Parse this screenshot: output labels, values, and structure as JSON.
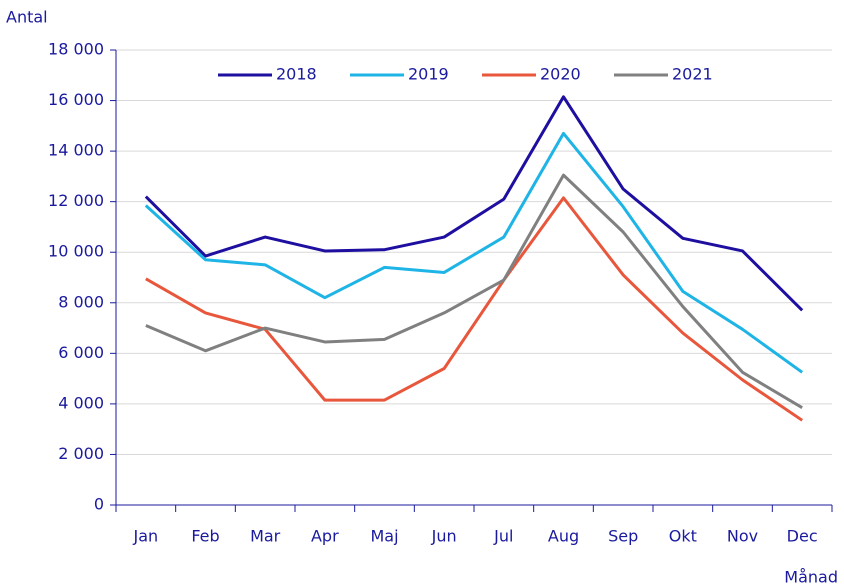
{
  "chart_data": {
    "type": "line",
    "y_label": "Antal",
    "x_label": "Månad",
    "categories": [
      "Jan",
      "Feb",
      "Mar",
      "Apr",
      "Maj",
      "Jun",
      "Jul",
      "Aug",
      "Sep",
      "Okt",
      "Nov",
      "Dec"
    ],
    "series": [
      {
        "name": "2018",
        "color": "#1e0fa0",
        "values": [
          12200,
          9850,
          10600,
          10050,
          10100,
          10600,
          12100,
          16150,
          12500,
          10550,
          10050,
          7700
        ]
      },
      {
        "name": "2019",
        "color": "#1eb4e6",
        "values": [
          11850,
          9700,
          9500,
          8200,
          9400,
          9200,
          10600,
          14700,
          11800,
          8450,
          6950,
          5250
        ]
      },
      {
        "name": "2020",
        "color": "#e8573c",
        "values": [
          8950,
          7600,
          6950,
          4150,
          4150,
          5400,
          8900,
          12150,
          9100,
          6800,
          4950,
          3350
        ]
      },
      {
        "name": "2021",
        "color": "#808080",
        "values": [
          7100,
          6100,
          7000,
          6450,
          6550,
          7600,
          8900,
          13050,
          10800,
          7850,
          5250,
          3850
        ]
      }
    ],
    "ylim": [
      0,
      18000
    ],
    "yticks": [
      0,
      {
        "value": 2000,
        "label": "2 000"
      },
      {
        "value": 4000,
        "label": "4 000"
      },
      {
        "value": 6000,
        "label": "6 000"
      },
      {
        "value": 8000,
        "label": "8 000"
      },
      {
        "value": 10000,
        "label": "10 000"
      },
      {
        "value": 12000,
        "label": "12 000"
      },
      {
        "value": 14000,
        "label": "14 000"
      },
      {
        "value": 16000,
        "label": "16 000"
      },
      {
        "value": 18000,
        "label": "18 000"
      }
    ],
    "grid": true,
    "legend": "top"
  }
}
